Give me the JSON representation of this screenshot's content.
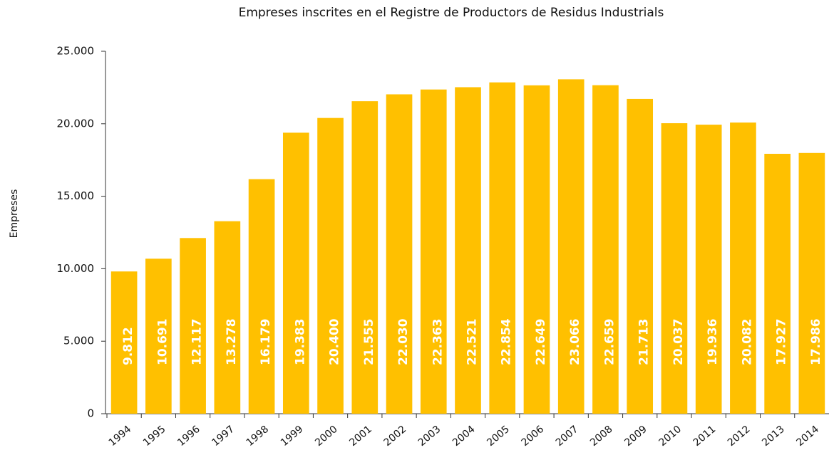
{
  "chart_data": {
    "type": "bar",
    "title": "Empreses inscrites en el Registre de Productors de Residus Industrials",
    "y_label": "Empreses",
    "categories": [
      "1994",
      "1995",
      "1996",
      "1997",
      "1998",
      "1999",
      "2000",
      "2001",
      "2002",
      "2003",
      "2004",
      "2005",
      "2006",
      "2007",
      "2008",
      "2009",
      "2010",
      "2011",
      "2012",
      "2013",
      "2014"
    ],
    "values": [
      9812,
      10691,
      12117,
      13278,
      16179,
      19383,
      20400,
      21555,
      22030,
      22363,
      22521,
      22854,
      22649,
      23066,
      22659,
      21713,
      20037,
      19936,
      20082,
      17927,
      17986
    ],
    "value_labels": [
      "9.812",
      "10.691",
      "12.117",
      "13.278",
      "16.179",
      "19.383",
      "20.400",
      "21.555",
      "22.030",
      "22.363",
      "22.521",
      "22.854",
      "22.649",
      "23.066",
      "22.659",
      "21.713",
      "20.037",
      "19.936",
      "20.082",
      "17.927",
      "17.986"
    ],
    "color": "#ffc000",
    "ylim": [
      0,
      25000
    ],
    "yticks": [
      0,
      {
        "value": 5000,
        "label": "5.000"
      },
      {
        "value": 10000,
        "label": "10.000"
      },
      {
        "value": 15000,
        "label": "15.000"
      },
      {
        "value": 20000,
        "label": "20.000"
      },
      {
        "value": 25000,
        "label": "25.000"
      }
    ],
    "grid": false
  }
}
